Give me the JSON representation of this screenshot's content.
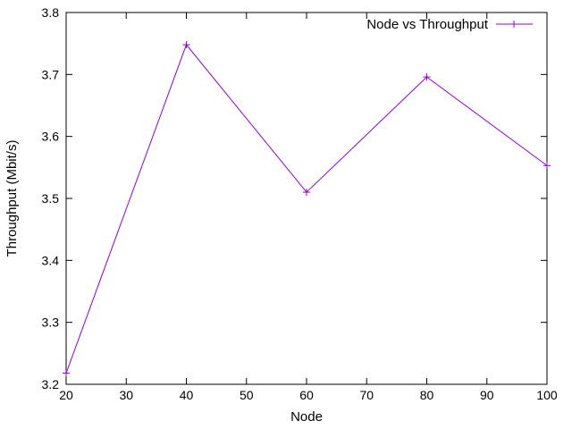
{
  "chart_data": {
    "type": "line",
    "title": "",
    "xlabel": "Node",
    "ylabel": "Throughput (Mbit/s)",
    "xlim": [
      20,
      100
    ],
    "ylim": [
      3.2,
      3.8
    ],
    "x_ticks": [
      "20",
      "30",
      "40",
      "50",
      "60",
      "70",
      "80",
      "90",
      "100"
    ],
    "y_ticks": [
      "3.2",
      "3.3",
      "3.4",
      "3.5",
      "3.6",
      "3.7",
      "3.8"
    ],
    "grid": false,
    "legend_position": "top-right",
    "series": [
      {
        "name": "Node vs Throughput",
        "color": "#9400d3",
        "marker": "plus",
        "x": [
          20,
          40,
          60,
          80,
          100
        ],
        "y": [
          3.218,
          3.748,
          3.51,
          3.696,
          3.553
        ]
      }
    ]
  }
}
